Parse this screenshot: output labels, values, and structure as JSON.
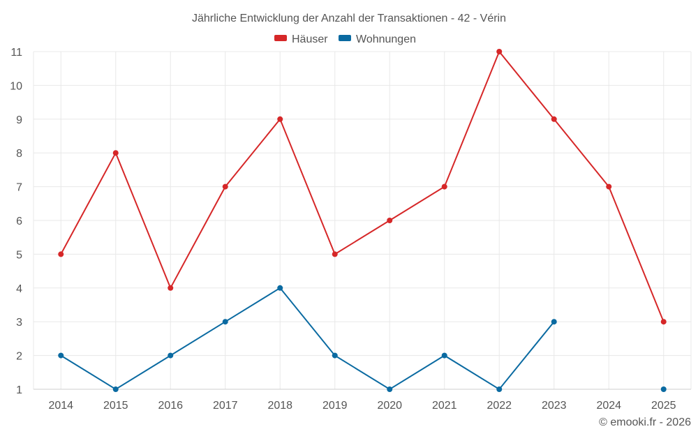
{
  "chart_data": {
    "type": "line",
    "title": "Jährliche Entwicklung der Anzahl der Transaktionen - 42 - Vérin",
    "categories": [
      "2014",
      "2015",
      "2016",
      "2017",
      "2018",
      "2019",
      "2020",
      "2021",
      "2022",
      "2023",
      "2024",
      "2025"
    ],
    "y_ticks": [
      "1",
      "2",
      "3",
      "4",
      "5",
      "6",
      "7",
      "8",
      "9",
      "10",
      "11"
    ],
    "ylim": [
      1,
      11
    ],
    "grid": true,
    "legend_position": "top-center",
    "series": [
      {
        "name": "Häuser",
        "color": "#d62728",
        "values": [
          5,
          8,
          4,
          7,
          9,
          5,
          6,
          7,
          11,
          9,
          7,
          3
        ]
      },
      {
        "name": "Wohnungen",
        "color": "#0a6aa1",
        "values": [
          2,
          1,
          2,
          3,
          4,
          2,
          1,
          2,
          1,
          3,
          null,
          1
        ]
      }
    ]
  },
  "credit": "© emooki.fr - 2026"
}
